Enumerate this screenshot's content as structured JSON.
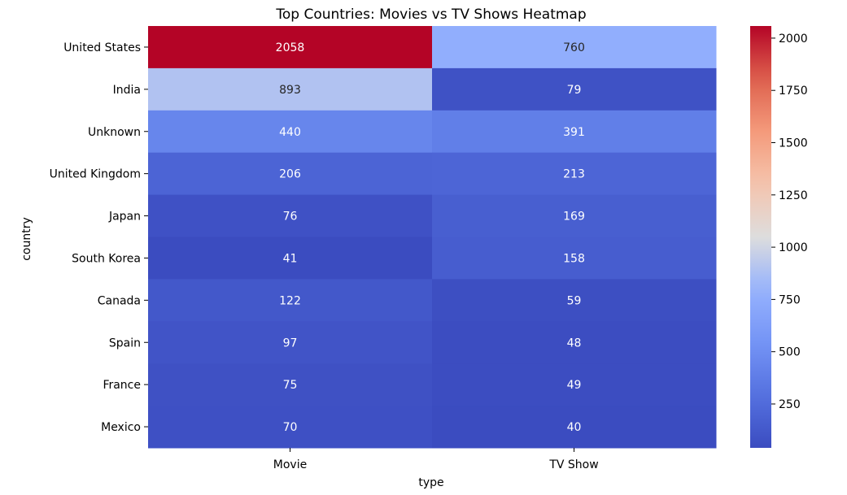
{
  "chart_data": {
    "type": "heatmap",
    "title": "Top Countries: Movies vs TV Shows Heatmap",
    "xlabel": "type",
    "ylabel": "country",
    "columns": [
      "Movie",
      "TV Show"
    ],
    "rows": [
      "United States",
      "India",
      "Unknown",
      "United Kingdom",
      "Japan",
      "South Korea",
      "Canada",
      "Spain",
      "France",
      "Mexico"
    ],
    "values": [
      [
        2058,
        760
      ],
      [
        893,
        79
      ],
      [
        440,
        391
      ],
      [
        206,
        213
      ],
      [
        76,
        169
      ],
      [
        41,
        158
      ],
      [
        122,
        59
      ],
      [
        97,
        48
      ],
      [
        75,
        49
      ],
      [
        70,
        40
      ]
    ],
    "colormap": "coolwarm",
    "vmin": 40,
    "vmax": 2058,
    "colorbar_ticks": [
      250,
      500,
      750,
      1000,
      1250,
      1500,
      1750,
      2000
    ],
    "annotated": true
  }
}
